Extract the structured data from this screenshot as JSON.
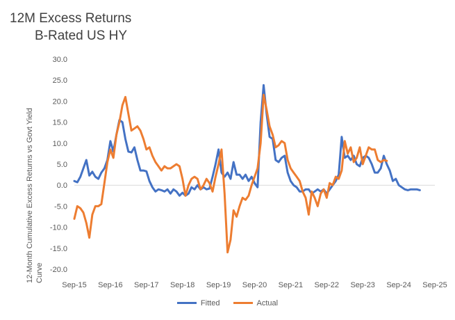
{
  "chart_data": {
    "type": "line",
    "title": "12M Excess Returns",
    "subtitle": "B-Rated US HY",
    "ylabel": "12-Month Cumulative Excess Returns vs Govt Yield Curve",
    "xlabel": "",
    "ylim": [
      -20,
      30
    ],
    "yticks": [
      "30.0",
      "25.0",
      "20.0",
      "15.0",
      "10.0",
      "5.0",
      "0.0",
      "-5.0",
      "-10.0",
      "-15.0",
      "-20.0"
    ],
    "ytick_values": [
      30,
      25,
      20,
      15,
      10,
      5,
      0,
      -5,
      -10,
      -15,
      -20
    ],
    "xticks": [
      "Sep-15",
      "Sep-16",
      "Sep-17",
      "Sep-18",
      "Sep-19",
      "Sep-20",
      "Sep-21",
      "Sep-22",
      "Sep-23",
      "Sep-24",
      "Sep-25"
    ],
    "xlim": [
      "Sep-15",
      "Sep-25"
    ],
    "legend_position": "bottom",
    "series": [
      {
        "name": "Fitted",
        "color": "#4472C4",
        "points": [
          [
            "Sep-15",
            1.0
          ],
          [
            "Oct-15",
            0.7
          ],
          [
            "Nov-15",
            2.0
          ],
          [
            "Dec-15",
            4.0
          ],
          [
            "Jan-16",
            6.0
          ],
          [
            "Feb-16",
            2.3
          ],
          [
            "Mar-16",
            3.2
          ],
          [
            "Apr-16",
            2.0
          ],
          [
            "May-16",
            1.5
          ],
          [
            "Jun-16",
            3.0
          ],
          [
            "Jul-16",
            4.0
          ],
          [
            "Aug-16",
            6.0
          ],
          [
            "Sep-16",
            10.5
          ],
          [
            "Oct-16",
            8.0
          ],
          [
            "Nov-16",
            12.0
          ],
          [
            "Dec-16",
            15.5
          ],
          [
            "Jan-17",
            15.0
          ],
          [
            "Feb-17",
            11.0
          ],
          [
            "Mar-17",
            8.0
          ],
          [
            "Apr-17",
            7.8
          ],
          [
            "May-17",
            9.0
          ],
          [
            "Jun-17",
            6.0
          ],
          [
            "Jul-17",
            3.5
          ],
          [
            "Aug-17",
            3.5
          ],
          [
            "Sep-17",
            3.3
          ],
          [
            "Oct-17",
            1.0
          ],
          [
            "Nov-17",
            -0.5
          ],
          [
            "Dec-17",
            -1.5
          ],
          [
            "Jan-18",
            -1.0
          ],
          [
            "Feb-18",
            -1.2
          ],
          [
            "Mar-18",
            -1.5
          ],
          [
            "Apr-18",
            -1.0
          ],
          [
            "May-18",
            -2.0
          ],
          [
            "Jun-18",
            -1.0
          ],
          [
            "Jul-18",
            -1.5
          ],
          [
            "Aug-18",
            -2.5
          ],
          [
            "Sep-18",
            -1.8
          ],
          [
            "Oct-18",
            -2.5
          ],
          [
            "Nov-18",
            -2.0
          ],
          [
            "Dec-18",
            -0.5
          ],
          [
            "Jan-19",
            -1.0
          ],
          [
            "Feb-19",
            0.0
          ],
          [
            "Mar-19",
            -1.0
          ],
          [
            "Apr-19",
            -0.5
          ],
          [
            "May-19",
            -1.0
          ],
          [
            "Jun-19",
            -0.8
          ],
          [
            "Jul-19",
            2.0
          ],
          [
            "Aug-19",
            5.0
          ],
          [
            "Sep-19",
            8.5
          ],
          [
            "Oct-19",
            3.0
          ],
          [
            "Nov-19",
            2.0
          ],
          [
            "Dec-19",
            3.0
          ],
          [
            "Jan-20",
            1.5
          ],
          [
            "Feb-20",
            5.5
          ],
          [
            "Mar-20",
            2.5
          ],
          [
            "Apr-20",
            2.5
          ],
          [
            "May-20",
            1.5
          ],
          [
            "Jun-20",
            2.5
          ],
          [
            "Jul-20",
            1.0
          ],
          [
            "Aug-20",
            2.0
          ],
          [
            "Sep-20",
            0.5
          ],
          [
            "Oct-20",
            -0.5
          ],
          [
            "Nov-20",
            15.0
          ],
          [
            "Dec-20",
            23.8
          ],
          [
            "Jan-21",
            17.0
          ],
          [
            "Feb-21",
            11.5
          ],
          [
            "Mar-21",
            11.0
          ],
          [
            "Apr-21",
            6.0
          ],
          [
            "May-21",
            5.5
          ],
          [
            "Jun-21",
            6.5
          ],
          [
            "Jul-21",
            7.0
          ],
          [
            "Aug-21",
            3.0
          ],
          [
            "Sep-21",
            1.0
          ],
          [
            "Oct-21",
            0.0
          ],
          [
            "Nov-21",
            -0.5
          ],
          [
            "Dec-21",
            -1.5
          ],
          [
            "Jan-22",
            -1.5
          ],
          [
            "Feb-22",
            -1.0
          ],
          [
            "Mar-22",
            -1.0
          ],
          [
            "Apr-22",
            -2.0
          ],
          [
            "May-22",
            -1.5
          ],
          [
            "Jun-22",
            -1.0
          ],
          [
            "Jul-22",
            -1.5
          ],
          [
            "Aug-22",
            -1.0
          ],
          [
            "Sep-22",
            -2.0
          ],
          [
            "Oct-22",
            -1.0
          ],
          [
            "Nov-22",
            0.0
          ],
          [
            "Dec-22",
            1.0
          ],
          [
            "Jan-23",
            2.5
          ],
          [
            "Feb-23",
            11.5
          ],
          [
            "Mar-23",
            6.5
          ],
          [
            "Apr-23",
            7.0
          ],
          [
            "May-23",
            6.0
          ],
          [
            "Jun-23",
            7.0
          ],
          [
            "Jul-23",
            5.0
          ],
          [
            "Aug-23",
            4.5
          ],
          [
            "Sep-23",
            6.5
          ],
          [
            "Oct-23",
            7.0
          ],
          [
            "Nov-23",
            6.5
          ],
          [
            "Dec-23",
            5.0
          ],
          [
            "Jan-24",
            3.0
          ],
          [
            "Feb-24",
            3.0
          ],
          [
            "Mar-24",
            4.0
          ],
          [
            "Apr-24",
            7.0
          ],
          [
            "May-24",
            5.0
          ],
          [
            "Jun-24",
            3.5
          ],
          [
            "Jul-24",
            1.0
          ],
          [
            "Aug-24",
            1.5
          ],
          [
            "Sep-24",
            0.0
          ],
          [
            "Oct-24",
            -0.5
          ],
          [
            "Nov-24",
            -1.0
          ],
          [
            "Dec-24",
            -1.2
          ],
          [
            "Jan-25",
            -1.0
          ],
          [
            "Feb-25",
            -1.0
          ],
          [
            "Mar-25",
            -1.0
          ],
          [
            "Apr-25",
            -1.2
          ]
        ]
      },
      {
        "name": "Actual",
        "color": "#ED7D31",
        "points": [
          [
            "Sep-15",
            -8.0
          ],
          [
            "Oct-15",
            -5.0
          ],
          [
            "Nov-15",
            -5.5
          ],
          [
            "Dec-15",
            -6.5
          ],
          [
            "Jan-16",
            -9.0
          ],
          [
            "Feb-16",
            -12.5
          ],
          [
            "Mar-16",
            -7.0
          ],
          [
            "Apr-16",
            -5.0
          ],
          [
            "May-16",
            -5.0
          ],
          [
            "Jun-16",
            -4.5
          ],
          [
            "Jul-16",
            0.5
          ],
          [
            "Aug-16",
            5.5
          ],
          [
            "Sep-16",
            8.5
          ],
          [
            "Oct-16",
            6.5
          ],
          [
            "Nov-16",
            12.0
          ],
          [
            "Dec-16",
            15.0
          ],
          [
            "Jan-17",
            19.0
          ],
          [
            "Feb-17",
            21.0
          ],
          [
            "Mar-17",
            17.0
          ],
          [
            "Apr-17",
            13.0
          ],
          [
            "May-17",
            13.5
          ],
          [
            "Jun-17",
            14.0
          ],
          [
            "Jul-17",
            13.0
          ],
          [
            "Aug-17",
            11.0
          ],
          [
            "Sep-17",
            8.5
          ],
          [
            "Oct-17",
            9.0
          ],
          [
            "Nov-17",
            7.0
          ],
          [
            "Dec-17",
            5.5
          ],
          [
            "Jan-18",
            4.5
          ],
          [
            "Feb-18",
            3.5
          ],
          [
            "Mar-18",
            4.5
          ],
          [
            "Apr-18",
            4.0
          ],
          [
            "May-18",
            4.0
          ],
          [
            "Jun-18",
            4.5
          ],
          [
            "Jul-18",
            5.0
          ],
          [
            "Aug-18",
            4.5
          ],
          [
            "Sep-18",
            1.5
          ],
          [
            "Oct-18",
            -2.5
          ],
          [
            "Nov-18",
            0.0
          ],
          [
            "Dec-18",
            1.5
          ],
          [
            "Jan-19",
            2.0
          ],
          [
            "Feb-19",
            1.5
          ],
          [
            "Mar-19",
            -1.0
          ],
          [
            "Apr-19",
            0.0
          ],
          [
            "May-19",
            1.5
          ],
          [
            "Jun-19",
            0.5
          ],
          [
            "Jul-19",
            -1.5
          ],
          [
            "Aug-19",
            2.0
          ],
          [
            "Sep-19",
            5.0
          ],
          [
            "Oct-19",
            8.5
          ],
          [
            "Nov-19",
            -2.0
          ],
          [
            "Dec-19",
            -16.0
          ],
          [
            "Jan-20",
            -13.0
          ],
          [
            "Feb-20",
            -6.0
          ],
          [
            "Mar-20",
            -7.5
          ],
          [
            "Apr-20",
            -5.0
          ],
          [
            "May-20",
            -3.0
          ],
          [
            "Jun-20",
            -3.5
          ],
          [
            "Jul-20",
            -2.5
          ],
          [
            "Aug-20",
            0.0
          ],
          [
            "Sep-20",
            2.0
          ],
          [
            "Oct-20",
            4.0
          ],
          [
            "Nov-20",
            10.0
          ],
          [
            "Dec-20",
            21.5
          ],
          [
            "Jan-21",
            18.0
          ],
          [
            "Feb-21",
            14.0
          ],
          [
            "Mar-21",
            12.0
          ],
          [
            "Apr-21",
            9.0
          ],
          [
            "May-21",
            9.5
          ],
          [
            "Jun-21",
            10.5
          ],
          [
            "Jul-21",
            10.0
          ],
          [
            "Aug-21",
            6.0
          ],
          [
            "Sep-21",
            4.0
          ],
          [
            "Oct-21",
            3.0
          ],
          [
            "Nov-21",
            2.0
          ],
          [
            "Dec-21",
            1.0
          ],
          [
            "Jan-22",
            -1.5
          ],
          [
            "Feb-22",
            -3.0
          ],
          [
            "Mar-22",
            -7.0
          ],
          [
            "Apr-22",
            -1.5
          ],
          [
            "May-22",
            -3.0
          ],
          [
            "Jun-22",
            -5.0
          ],
          [
            "Jul-22",
            -2.0
          ],
          [
            "Aug-22",
            -1.0
          ],
          [
            "Sep-22",
            -3.0
          ],
          [
            "Oct-22",
            0.5
          ],
          [
            "Nov-22",
            0.0
          ],
          [
            "Dec-22",
            2.0
          ],
          [
            "Jan-23",
            1.5
          ],
          [
            "Feb-23",
            3.5
          ],
          [
            "Mar-23",
            10.5
          ],
          [
            "Apr-23",
            7.5
          ],
          [
            "May-23",
            9.0
          ],
          [
            "Jun-23",
            5.5
          ],
          [
            "Jul-23",
            6.5
          ],
          [
            "Aug-23",
            9.0
          ],
          [
            "Sep-23",
            5.0
          ],
          [
            "Oct-23",
            7.0
          ],
          [
            "Nov-23",
            9.0
          ],
          [
            "Dec-23",
            8.5
          ],
          [
            "Jan-24",
            8.5
          ],
          [
            "Feb-24",
            6.0
          ],
          [
            "Mar-24",
            5.5
          ],
          [
            "Apr-24",
            6.0
          ],
          [
            "May-24",
            5.8
          ]
        ]
      }
    ]
  }
}
